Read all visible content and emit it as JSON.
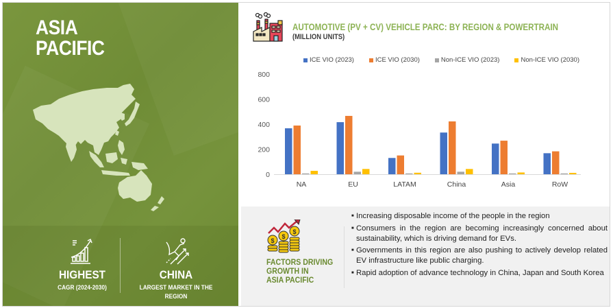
{
  "left_panel": {
    "title_line1": "ASIA",
    "title_line2": "PACIFIC",
    "map_icon": "asia-pacific-map",
    "stats": [
      {
        "icon": "growth-bar-chart-icon",
        "value": "HIGHEST",
        "label": "CAGR (2024-2030)"
      },
      {
        "icon": "flying-hero-icon",
        "value": "CHINA",
        "label": "LARGEST MARKET IN THE REGION"
      }
    ],
    "colors": {
      "background": "#728f39",
      "text": "#ffffff",
      "map": "#d7e4bc"
    }
  },
  "chart_header": {
    "icon": "factory-icon",
    "title": "AUTOMOTIVE (PV + CV) VEHICLE PARC: BY REGION & POWERTRAIN",
    "subtitle": "(MILLION UNITS)"
  },
  "chart_data": {
    "type": "bar",
    "title": "AUTOMOTIVE (PV + CV) VEHICLE PARC: BY REGION & POWERTRAIN",
    "subtitle": "(MILLION UNITS)",
    "xlabel": "",
    "ylabel": "",
    "categories": [
      "NA",
      "EU",
      "LATAM",
      "China",
      "Asia",
      "RoW"
    ],
    "series": [
      {
        "name": "ICE VIO (2023)",
        "color": "#4472c4",
        "values": [
          367,
          416,
          130,
          333,
          245,
          168
        ]
      },
      {
        "name": "ICE VIO (2030)",
        "color": "#ed7d31",
        "values": [
          389,
          466,
          150,
          422,
          268,
          183
        ]
      },
      {
        "name": "Non-ICE VIO (2023)",
        "color": "#a5a5a5",
        "values": [
          2,
          20,
          2,
          20,
          2,
          2
        ]
      },
      {
        "name": "Non-ICE VIO (2030)",
        "color": "#ffc000",
        "values": [
          27,
          42,
          12,
          42,
          14,
          11
        ]
      }
    ],
    "ylim": [
      0,
      800
    ],
    "yticks": [
      0,
      200,
      400,
      600,
      800
    ],
    "grid": false,
    "legend_position": "top"
  },
  "factors": {
    "icon": "money-growth-icon",
    "heading_lines": [
      "FACTORS DRIVING",
      "GROWTH IN",
      "ASIA PACIFIC"
    ],
    "bullets": [
      "Increasing disposable income of the people in the region",
      "Consumers in the region are becoming increasingly concerned about sustainability, which is driving demand for EVs.",
      "Governments in this region are also pushing to actively develop related EV infrastructure like public charging.",
      "Rapid adoption of advance technology in China, Japan and South Korea"
    ]
  }
}
